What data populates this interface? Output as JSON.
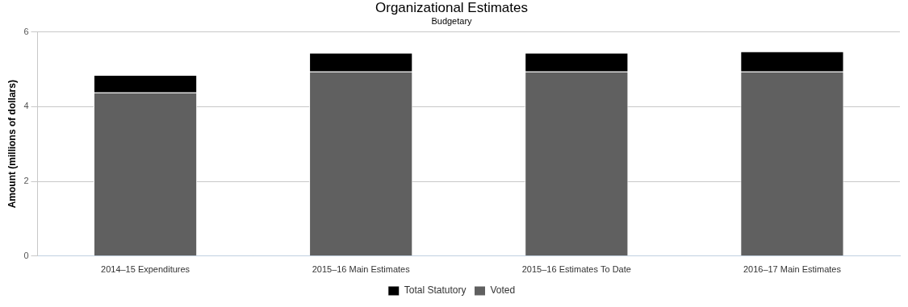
{
  "chart_data": {
    "type": "bar",
    "title": "Organizational Estimates",
    "subtitle": "Budgetary",
    "y_label": "Amount (millions of dollars)",
    "categories": [
      "2014–15 Expenditures",
      "2015–16 Main Estimates",
      "2015–16 Estimates To Date",
      "2016–17 Main Estimates"
    ],
    "series": [
      {
        "name": "Voted",
        "color": "#606060",
        "values": [
          4.38,
          4.94,
          4.94,
          4.94
        ]
      },
      {
        "name": "Total Statutory",
        "color": "#000000",
        "values": [
          0.47,
          0.5,
          0.5,
          0.54
        ]
      }
    ],
    "ylim": [
      0,
      6
    ],
    "yticks": [
      0,
      2,
      4,
      6
    ],
    "grid": true,
    "stacked": true,
    "legend": "bottom"
  }
}
